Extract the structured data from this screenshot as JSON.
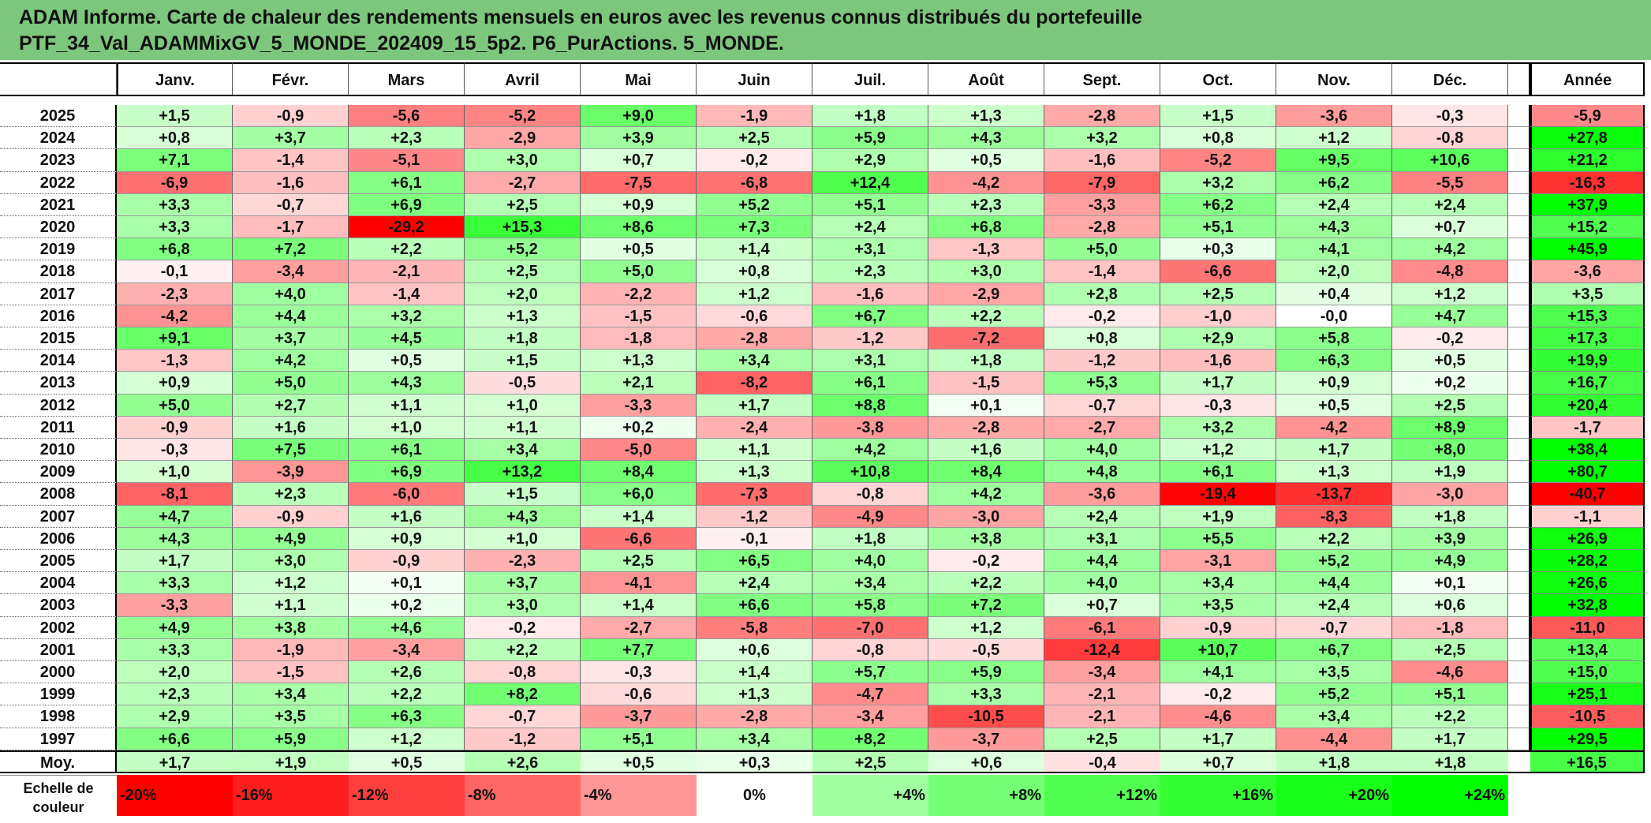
{
  "title": {
    "line1": "ADAM Informe. Carte de chaleur des rendements mensuels en euros avec les revenus connus distribués du portefeuille",
    "line2": "PTF_34_Val_ADAMMixGV_5_MONDE_202409_15_5p2. P6_PurActions. 5_MONDE."
  },
  "chart_data": {
    "type": "heatmap",
    "columns": [
      "Janv.",
      "Févr.",
      "Mars",
      "Avril",
      "Mai",
      "Juin",
      "Juil.",
      "Août",
      "Sept.",
      "Oct.",
      "Nov.",
      "Déc."
    ],
    "year_column": "Année",
    "rows": [
      {
        "year": "2025",
        "values": [
          "+1,5",
          "-0,9",
          "-5,6",
          "-5,2",
          "+9,0",
          "-1,9",
          "+1,8",
          "+1,3",
          "-2,8",
          "+1,5",
          "-3,6",
          "-0,3"
        ],
        "annual": "-5,9"
      },
      {
        "year": "2024",
        "values": [
          "+0,8",
          "+3,7",
          "+2,3",
          "-2,9",
          "+3,9",
          "+2,5",
          "+5,9",
          "+4,3",
          "+3,2",
          "+0,8",
          "+1,2",
          "-0,8"
        ],
        "annual": "+27,8"
      },
      {
        "year": "2023",
        "values": [
          "+7,1",
          "-1,4",
          "-5,1",
          "+3,0",
          "+0,7",
          "-0,2",
          "+2,9",
          "+0,5",
          "-1,6",
          "-5,2",
          "+9,5",
          "+10,6"
        ],
        "annual": "+21,2"
      },
      {
        "year": "2022",
        "values": [
          "-6,9",
          "-1,6",
          "+6,1",
          "-2,7",
          "-7,5",
          "-6,8",
          "+12,4",
          "-4,2",
          "-7,9",
          "+3,2",
          "+6,2",
          "-5,5"
        ],
        "annual": "-16,3"
      },
      {
        "year": "2021",
        "values": [
          "+3,3",
          "-0,7",
          "+6,9",
          "+2,5",
          "+0,9",
          "+5,2",
          "+5,1",
          "+2,3",
          "-3,3",
          "+6,2",
          "+2,4",
          "+2,4"
        ],
        "annual": "+37,9"
      },
      {
        "year": "2020",
        "values": [
          "+3,3",
          "-1,7",
          "-29,2",
          "+15,3",
          "+8,6",
          "+7,3",
          "+2,4",
          "+6,8",
          "-2,8",
          "+5,1",
          "+4,3",
          "+0,7"
        ],
        "annual": "+15,2"
      },
      {
        "year": "2019",
        "values": [
          "+6,8",
          "+7,2",
          "+2,2",
          "+5,2",
          "+0,5",
          "+1,4",
          "+3,1",
          "-1,3",
          "+5,0",
          "+0,3",
          "+4,1",
          "+4,2"
        ],
        "annual": "+45,9"
      },
      {
        "year": "2018",
        "values": [
          "-0,1",
          "-3,4",
          "-2,1",
          "+2,5",
          "+5,0",
          "+0,8",
          "+2,3",
          "+3,0",
          "-1,4",
          "-6,6",
          "+2,0",
          "-4,8"
        ],
        "annual": "-3,6"
      },
      {
        "year": "2017",
        "values": [
          "-2,3",
          "+4,0",
          "-1,4",
          "+2,0",
          "-2,2",
          "+1,2",
          "-1,6",
          "-2,9",
          "+2,8",
          "+2,5",
          "+0,4",
          "+1,2"
        ],
        "annual": "+3,5"
      },
      {
        "year": "2016",
        "values": [
          "-4,2",
          "+4,4",
          "+3,2",
          "+1,3",
          "-1,5",
          "-0,6",
          "+6,7",
          "+2,2",
          "-0,2",
          "-1,0",
          "-0,0",
          "+4,7"
        ],
        "annual": "+15,3"
      },
      {
        "year": "2015",
        "values": [
          "+9,1",
          "+3,7",
          "+4,5",
          "+1,8",
          "-1,8",
          "-2,8",
          "-1,2",
          "-7,2",
          "+0,8",
          "+2,9",
          "+5,8",
          "-0,2"
        ],
        "annual": "+17,3"
      },
      {
        "year": "2014",
        "values": [
          "-1,3",
          "+4,2",
          "+0,5",
          "+1,5",
          "+1,3",
          "+3,4",
          "+3,1",
          "+1,8",
          "-1,2",
          "-1,6",
          "+6,3",
          "+0,5"
        ],
        "annual": "+19,9"
      },
      {
        "year": "2013",
        "values": [
          "+0,9",
          "+5,0",
          "+4,3",
          "-0,5",
          "+2,1",
          "-8,2",
          "+6,1",
          "-1,5",
          "+5,3",
          "+1,7",
          "+0,9",
          "+0,2"
        ],
        "annual": "+16,7"
      },
      {
        "year": "2012",
        "values": [
          "+5,0",
          "+2,7",
          "+1,1",
          "+1,0",
          "-3,3",
          "+1,7",
          "+8,8",
          "+0,1",
          "-0,7",
          "-0,3",
          "+0,5",
          "+2,5"
        ],
        "annual": "+20,4"
      },
      {
        "year": "2011",
        "values": [
          "-0,9",
          "+1,6",
          "+1,0",
          "+1,1",
          "+0,2",
          "-2,4",
          "-3,8",
          "-2,8",
          "-2,7",
          "+3,2",
          "-4,2",
          "+8,9"
        ],
        "annual": "-1,7"
      },
      {
        "year": "2010",
        "values": [
          "-0,3",
          "+7,5",
          "+6,1",
          "+3,4",
          "-5,0",
          "+1,1",
          "+4,2",
          "+1,6",
          "+4,0",
          "+1,2",
          "+1,7",
          "+8,0"
        ],
        "annual": "+38,4"
      },
      {
        "year": "2009",
        "values": [
          "+1,0",
          "-3,9",
          "+6,9",
          "+13,2",
          "+8,4",
          "+1,3",
          "+10,8",
          "+8,4",
          "+4,8",
          "+6,1",
          "+1,3",
          "+1,9"
        ],
        "annual": "+80,7"
      },
      {
        "year": "2008",
        "values": [
          "-8,1",
          "+2,3",
          "-6,0",
          "+1,5",
          "+6,0",
          "-7,3",
          "-0,8",
          "+4,2",
          "-3,6",
          "-19,4",
          "-13,7",
          "-3,0"
        ],
        "annual": "-40,7"
      },
      {
        "year": "2007",
        "values": [
          "+4,7",
          "-0,9",
          "+1,6",
          "+4,3",
          "+1,4",
          "-1,2",
          "-4,9",
          "-3,0",
          "+2,4",
          "+1,9",
          "-8,3",
          "+1,8"
        ],
        "annual": "-1,1"
      },
      {
        "year": "2006",
        "values": [
          "+4,3",
          "+4,9",
          "+0,9",
          "+1,0",
          "-6,6",
          "-0,1",
          "+1,8",
          "+3,8",
          "+3,1",
          "+5,5",
          "+2,2",
          "+3,9"
        ],
        "annual": "+26,9"
      },
      {
        "year": "2005",
        "values": [
          "+1,7",
          "+3,0",
          "-0,9",
          "-2,3",
          "+2,5",
          "+6,5",
          "+4,0",
          "-0,2",
          "+4,4",
          "-3,1",
          "+5,2",
          "+4,9"
        ],
        "annual": "+28,2"
      },
      {
        "year": "2004",
        "values": [
          "+3,3",
          "+1,2",
          "+0,1",
          "+3,7",
          "-4,1",
          "+2,4",
          "+3,4",
          "+2,2",
          "+4,0",
          "+3,4",
          "+4,4",
          "+0,1"
        ],
        "annual": "+26,6"
      },
      {
        "year": "2003",
        "values": [
          "-3,3",
          "+1,1",
          "+0,2",
          "+3,0",
          "+1,4",
          "+6,6",
          "+5,8",
          "+7,2",
          "+0,7",
          "+3,5",
          "+2,4",
          "+0,6"
        ],
        "annual": "+32,8"
      },
      {
        "year": "2002",
        "values": [
          "+4,9",
          "+3,8",
          "+4,6",
          "-0,2",
          "-2,7",
          "-5,8",
          "-7,0",
          "+1,2",
          "-6,1",
          "-0,9",
          "-0,7",
          "-1,8"
        ],
        "annual": "-11,0"
      },
      {
        "year": "2001",
        "values": [
          "+3,3",
          "-1,9",
          "-3,4",
          "+2,2",
          "+7,7",
          "+0,6",
          "-0,8",
          "-0,5",
          "-12,4",
          "+10,7",
          "+6,7",
          "+2,5"
        ],
        "annual": "+13,4"
      },
      {
        "year": "2000",
        "values": [
          "+2,0",
          "-1,5",
          "+2,6",
          "-0,8",
          "-0,3",
          "+1,4",
          "+5,7",
          "+5,9",
          "-3,4",
          "+4,1",
          "+3,5",
          "-4,6"
        ],
        "annual": "+15,0"
      },
      {
        "year": "1999",
        "values": [
          "+2,3",
          "+3,4",
          "+2,2",
          "+8,2",
          "-0,6",
          "+1,3",
          "-4,7",
          "+3,3",
          "-2,1",
          "-0,2",
          "+5,2",
          "+5,1"
        ],
        "annual": "+25,1"
      },
      {
        "year": "1998",
        "values": [
          "+2,9",
          "+3,5",
          "+6,3",
          "-0,7",
          "-3,7",
          "-2,8",
          "-3,4",
          "-10,5",
          "-2,1",
          "-4,6",
          "+3,4",
          "+2,2"
        ],
        "annual": "-10,5"
      },
      {
        "year": "1997",
        "values": [
          "+6,6",
          "+5,9",
          "+1,2",
          "-1,2",
          "+5,1",
          "+3,4",
          "+8,2",
          "-3,7",
          "+2,5",
          "+1,7",
          "-4,4",
          "+1,7"
        ],
        "annual": "+29,5"
      }
    ],
    "average": {
      "label": "Moy.",
      "values": [
        "+1,7",
        "+1,9",
        "+0,5",
        "+2,6",
        "+0,5",
        "+0,3",
        "+2,5",
        "+0,6",
        "-0,4",
        "+0,7",
        "+1,8",
        "+1,8"
      ],
      "annual": "+16,5"
    },
    "scale": {
      "label": "Echelle de couleur",
      "steps": [
        {
          "label": "-20%",
          "value": -20
        },
        {
          "label": "-16%",
          "value": -16
        },
        {
          "label": "-12%",
          "value": -12
        },
        {
          "label": "-8%",
          "value": -8
        },
        {
          "label": "-4%",
          "value": -4
        },
        {
          "label": "0%",
          "value": 0
        },
        {
          "label": "+4%",
          "value": 4
        },
        {
          "label": "+8%",
          "value": 8
        },
        {
          "label": "+12%",
          "value": 12
        },
        {
          "label": "+16%",
          "value": 16
        },
        {
          "label": "+20%",
          "value": 20
        },
        {
          "label": "+24%",
          "value": 24
        }
      ]
    },
    "colors": {
      "negative_max": "#ff0000",
      "neutral": "#ffffff",
      "positive_max": "#00ff00"
    }
  }
}
